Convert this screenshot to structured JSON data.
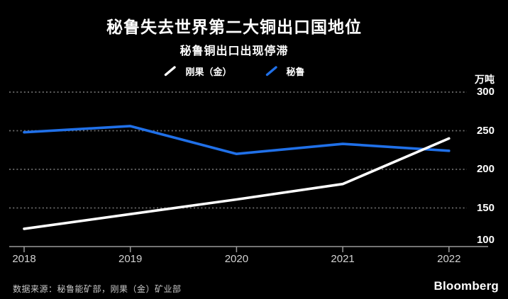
{
  "chart_data": {
    "type": "line",
    "title": "秘鲁失去世界第二大铜出口国地位",
    "subtitle": "秘鲁铜出口出现停滞",
    "ylabel": "万吨",
    "x": [
      2018,
      2019,
      2020,
      2021,
      2022
    ],
    "series": [
      {
        "name": "刚果（金）",
        "color": "#ffffff",
        "values": [
          123,
          142,
          161,
          181,
          240
        ]
      },
      {
        "name": "秘鲁",
        "color": "#2070e8",
        "values": [
          248,
          256,
          220,
          233,
          224
        ]
      }
    ],
    "ylim": [
      100,
      300
    ],
    "yticks": [
      100,
      150,
      200,
      250,
      300
    ],
    "grid": "dotted-horizontal",
    "legend_position": "top-center"
  },
  "footer": {
    "source": "数据来源：秘鲁能矿部，刚果（金）矿业部",
    "brand": "Bloomberg"
  },
  "colors": {
    "background": "#000000",
    "text": "#ffffff",
    "axis": "#9a9a9a",
    "grid": "#6e6e6e",
    "xtick_label": "#d2d2d2",
    "source_text": "#c8c8c8",
    "series_congo": "#ffffff",
    "series_peru": "#2070e8"
  }
}
